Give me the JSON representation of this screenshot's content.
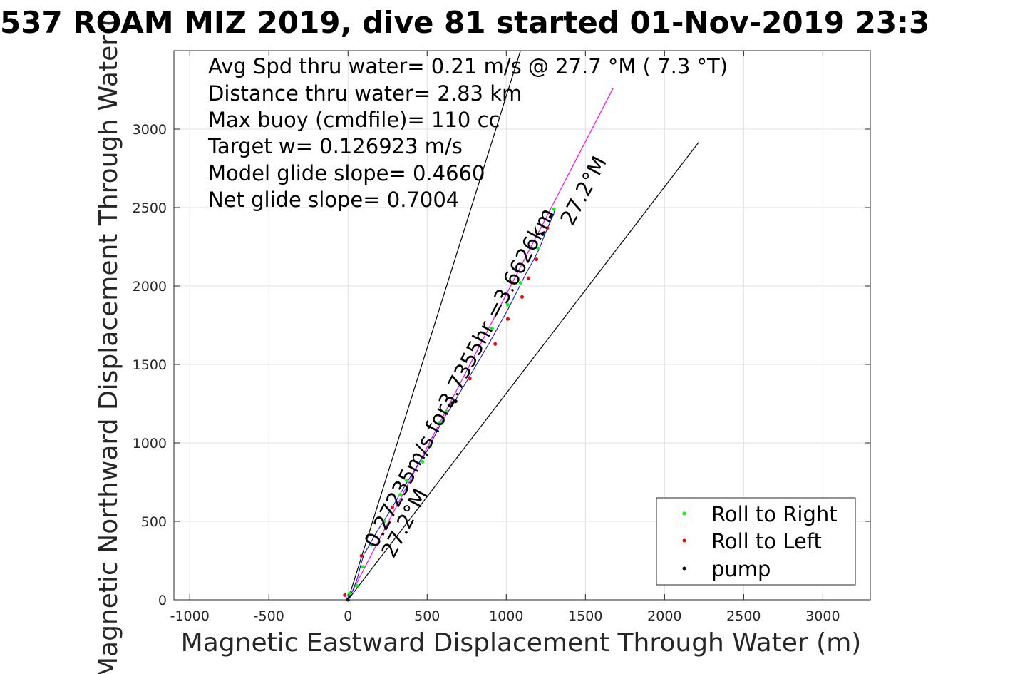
{
  "chart_data": {
    "type": "scatter",
    "title": "537 ROAM MIZ 2019, dive 81 started 01-Nov-2019 23:3",
    "xlabel": "Magnetic Eastward Displacement Through Water (m)",
    "ylabel": "Magnetic Northward Displacement Through Water (",
    "xlim": [
      -1100,
      3300
    ],
    "ylim": [
      0,
      3500
    ],
    "xticks": [
      -1000,
      -500,
      0,
      500,
      1000,
      1500,
      2000,
      2500,
      3000
    ],
    "yticks": [
      0,
      500,
      1000,
      1500,
      2000,
      2500,
      3000
    ],
    "grid": true,
    "legend_position": "bottom-right",
    "stats": [
      "Avg Spd thru water=  0.21 m/s @  27.7 °M (  7.3 °T)",
      "Distance thru water=  2.83 km",
      "Max buoy (cmdfile)= 110 cc",
      "Target w= 0.126923 m/s",
      "Model glide slope= 0.4660",
      "Net glide slope= 0.7004"
    ],
    "annotations": {
      "speed_label": "0.27235m/s for3.7355hr =3.6626km",
      "heading_label_top": "27.2°M",
      "heading_label_bottom": "27.2°M"
    },
    "lines": [
      {
        "name": "heading-line",
        "color": "#ff00ff",
        "x": [
          0,
          1675
        ],
        "y": [
          0,
          3260
        ]
      },
      {
        "name": "bound-line-left",
        "color": "#000000",
        "x": [
          0,
          1090
        ],
        "y": [
          0,
          3500
        ]
      },
      {
        "name": "bound-line-right",
        "color": "#000000",
        "x": [
          0,
          2215
        ],
        "y": [
          0,
          2915
        ]
      }
    ],
    "track": {
      "name": "track",
      "color": "#0000ff",
      "x": [
        -15,
        0,
        30,
        60,
        80,
        100,
        130,
        180,
        230,
        280,
        320,
        380,
        440,
        500,
        550,
        600,
        660,
        700,
        760,
        830,
        900,
        960,
        1010,
        1050,
        1090,
        1130,
        1170,
        1210,
        1240,
        1270,
        1300,
        1310
      ],
      "y": [
        20,
        0,
        60,
        140,
        220,
        290,
        340,
        430,
        510,
        590,
        660,
        760,
        860,
        950,
        1050,
        1150,
        1240,
        1310,
        1410,
        1530,
        1650,
        1760,
        1850,
        1930,
        2010,
        2090,
        2160,
        2240,
        2320,
        2390,
        2460,
        2500
      ]
    },
    "series": [
      {
        "name": "Roll to Right",
        "color": "#00ff00",
        "x": [
          10,
          55,
          95,
          150,
          230,
          330,
          370,
          470,
          520,
          580,
          620,
          700,
          910,
          1010,
          1090,
          1200,
          1300
        ],
        "y": [
          40,
          90,
          210,
          350,
          500,
          670,
          760,
          880,
          980,
          1130,
          1200,
          1380,
          1730,
          1880,
          2020,
          2240,
          2490
        ]
      },
      {
        "name": "Roll to Left",
        "color": "#ff0000",
        "x": [
          -20,
          85,
          280,
          770,
          930,
          1010,
          1100,
          1140,
          1190,
          1260
        ],
        "y": [
          30,
          280,
          590,
          1410,
          1630,
          1790,
          1930,
          2050,
          2170,
          2370
        ]
      },
      {
        "name": "pump",
        "color": "#000000",
        "x": [
          0,
          640,
          660,
          680,
          1230,
          1280
        ],
        "y": [
          0,
          1240,
          1255,
          1265,
          2330,
          2440
        ]
      }
    ]
  }
}
